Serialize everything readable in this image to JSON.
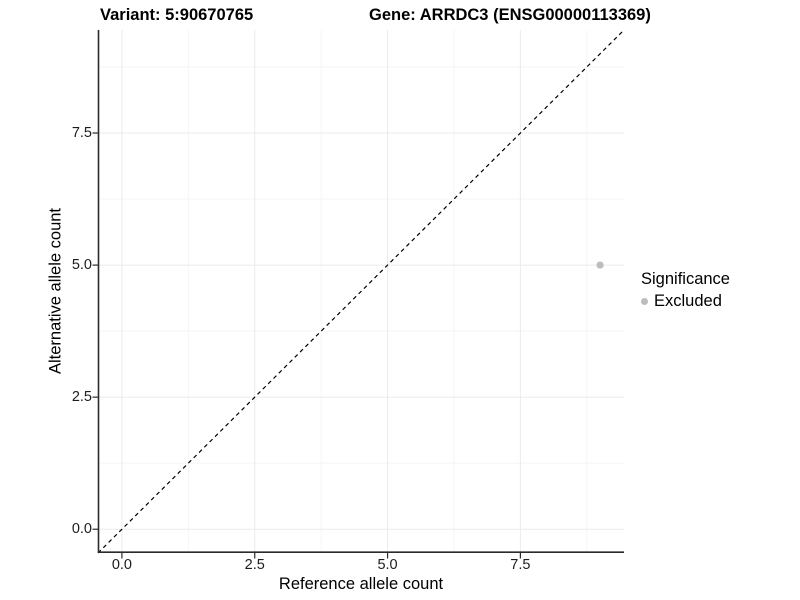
{
  "titles": {
    "variant": "Variant: 5:90670765",
    "gene": "Gene: ARRDC3 (ENSG00000113369)"
  },
  "chart_data": {
    "type": "scatter",
    "xlabel": "Reference allele count",
    "ylabel": "Alternative allele count",
    "xlim": [
      -0.45,
      9.45
    ],
    "ylim": [
      -0.45,
      9.45
    ],
    "x_ticks": {
      "values": [
        0,
        2.5,
        5,
        7.5
      ],
      "labels": [
        "0.0",
        "2.5",
        "5.0",
        "7.5"
      ]
    },
    "y_ticks": {
      "values": [
        0,
        2.5,
        5,
        7.5
      ],
      "labels": [
        "0.0",
        "2.5",
        "5.0",
        "7.5"
      ]
    },
    "x_minor": [
      1.25,
      3.75,
      6.25,
      8.75
    ],
    "y_minor": [
      1.25,
      3.75,
      6.25,
      8.75
    ],
    "grid": true,
    "points": [
      {
        "x": 9,
        "y": 5,
        "significance": "Excluded"
      }
    ],
    "identity_line": {
      "equation": "y = x",
      "style": "dashed"
    },
    "legend": {
      "title": "Significance",
      "position": "right",
      "entries": [
        {
          "label": "Excluded",
          "color": "#bdbdbd"
        }
      ]
    },
    "colors": {
      "point": "#bdbdbd",
      "grid_major": "#ebebeb",
      "grid_minor": "#f5f5f5",
      "axis": "#2b2b2b",
      "dashed_line": "#000000",
      "tick_text": "#1c1c1c"
    }
  }
}
